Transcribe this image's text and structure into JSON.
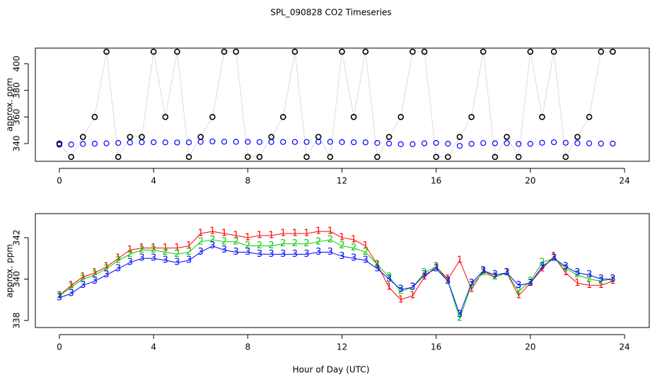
{
  "chart_data": [
    {
      "type": "scatter",
      "title": "SPL_090828  CO2 Timeseries",
      "y_label": "approx. ppm",
      "x": [
        0,
        0.5,
        1,
        1.5,
        2,
        2.5,
        3,
        3.5,
        4,
        4.5,
        5,
        5.5,
        6,
        6.5,
        7,
        7.5,
        8,
        8.5,
        9,
        9.5,
        10,
        10.5,
        11,
        11.5,
        12,
        12.5,
        13,
        13.5,
        14,
        14.5,
        15,
        15.5,
        16,
        16.5,
        17,
        17.5,
        18,
        18.5,
        19,
        19.5,
        20,
        20.5,
        21,
        21.5,
        22,
        22.5,
        23,
        23.5
      ],
      "xlim": [
        -1.02,
        25.05
      ],
      "xticks": [
        0,
        4,
        8,
        12,
        16,
        20,
        24
      ],
      "ylim": [
        326.7,
        411.7
      ],
      "yticks": [
        340,
        360,
        380,
        400
      ],
      "series": [
        {
          "color": "#000000",
          "values": [
            340,
            330,
            345,
            360,
            409,
            330,
            345,
            345,
            409,
            360,
            409,
            330,
            345,
            360,
            409,
            409,
            330,
            330,
            345,
            360,
            409,
            330,
            345,
            330,
            409,
            360,
            409,
            330,
            345,
            360,
            409,
            409,
            330,
            330,
            345,
            360,
            409,
            330,
            345,
            330,
            409,
            360,
            409,
            330,
            345,
            360,
            409,
            409
          ]
        },
        {
          "color": "#0000ff",
          "values": [
            339.1,
            339.3,
            339.7,
            339.9,
            340.2,
            340.5,
            340.8,
            341.0,
            341.0,
            340.9,
            340.8,
            340.9,
            341.3,
            341.6,
            341.4,
            341.3,
            341.3,
            341.2,
            341.2,
            341.2,
            341.2,
            341.2,
            341.3,
            341.3,
            341.1,
            341.0,
            340.9,
            340.5,
            340.0,
            339.5,
            339.6,
            340.2,
            340.5,
            339.9,
            338.3,
            339.8,
            340.4,
            340.2,
            340.3,
            339.7,
            339.8,
            340.6,
            341.0,
            340.6,
            340.3,
            340.2,
            340.0,
            340.0
          ]
        }
      ]
    },
    {
      "type": "line",
      "x_label": "Hour of Day (UTC)",
      "y_label": "approx. ppm",
      "x": [
        0,
        0.5,
        1,
        1.5,
        2,
        2.5,
        3,
        3.5,
        4,
        4.5,
        5,
        5.5,
        6,
        6.5,
        7,
        7.5,
        8,
        8.5,
        9,
        9.5,
        10,
        10.5,
        11,
        11.5,
        12,
        12.5,
        13,
        13.5,
        14,
        14.5,
        15,
        15.5,
        16,
        16.5,
        17,
        17.5,
        18,
        18.5,
        19,
        19.5,
        20,
        20.5,
        21,
        21.5,
        22,
        22.5,
        23,
        23.5
      ],
      "xlim": [
        -1.02,
        25.05
      ],
      "xticks": [
        0,
        4,
        8,
        12,
        16,
        20,
        24
      ],
      "ylim": [
        337.66,
        343.16
      ],
      "yticks": [
        338,
        340,
        342
      ],
      "series": [
        {
          "marker": "1",
          "color": "#ff0000",
          "values": [
            339.2,
            339.7,
            340.1,
            340.3,
            340.6,
            341.0,
            341.4,
            341.5,
            341.5,
            341.5,
            341.5,
            341.6,
            342.2,
            342.3,
            342.2,
            342.1,
            342.0,
            342.1,
            342.1,
            342.2,
            342.2,
            342.2,
            342.3,
            342.3,
            342.0,
            341.9,
            341.6,
            340.7,
            339.6,
            339.0,
            339.2,
            340.1,
            340.6,
            340.0,
            340.9,
            339.5,
            340.4,
            340.1,
            340.3,
            339.2,
            339.8,
            340.5,
            341.1,
            340.3,
            339.8,
            339.7,
            339.7,
            339.9
          ]
        },
        {
          "marker": "2",
          "color": "#00cd00",
          "values": [
            339.2,
            339.6,
            340.0,
            340.2,
            340.5,
            340.9,
            341.2,
            341.4,
            341.4,
            341.3,
            341.2,
            341.3,
            341.8,
            341.9,
            341.8,
            341.8,
            341.6,
            341.6,
            341.6,
            341.7,
            341.7,
            341.7,
            341.8,
            341.9,
            341.6,
            341.5,
            341.3,
            340.7,
            340.1,
            339.4,
            339.6,
            340.3,
            340.6,
            339.9,
            338.1,
            339.7,
            340.3,
            340.1,
            340.3,
            339.4,
            339.9,
            340.8,
            341.0,
            340.5,
            340.2,
            340.0,
            339.9,
            340.0
          ]
        },
        {
          "marker": "3",
          "color": "#0000ff",
          "values": [
            339.1,
            339.3,
            339.7,
            339.9,
            340.2,
            340.5,
            340.8,
            341.0,
            341.0,
            340.9,
            340.8,
            340.9,
            341.3,
            341.6,
            341.4,
            341.3,
            341.3,
            341.2,
            341.2,
            341.2,
            341.2,
            341.2,
            341.3,
            341.3,
            341.1,
            341.0,
            340.9,
            340.5,
            340.0,
            339.5,
            339.6,
            340.2,
            340.5,
            339.9,
            338.3,
            339.8,
            340.4,
            340.2,
            340.3,
            339.7,
            339.8,
            340.6,
            341.0,
            340.6,
            340.3,
            340.2,
            340.0,
            340.0
          ]
        }
      ]
    }
  ]
}
